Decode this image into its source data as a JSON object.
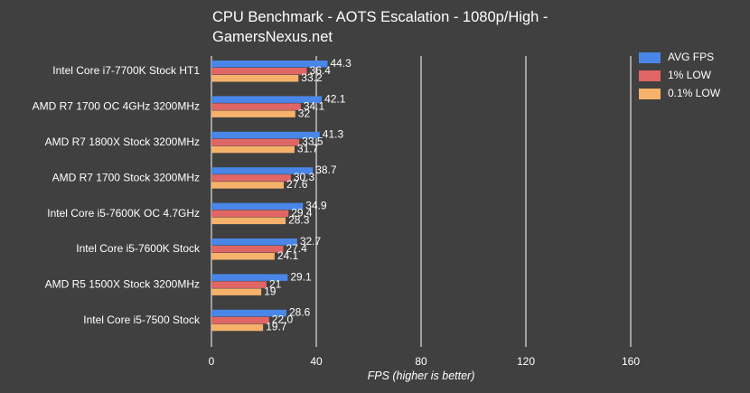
{
  "chart_data": {
    "type": "bar",
    "orientation": "horizontal",
    "title_line1": "CPU Benchmark - AOTS Escalation - 1080p/High -",
    "title_line2": "GamersNexus.net",
    "xlabel": "FPS (higher is better)",
    "xlim": [
      0,
      180
    ],
    "xticks": [
      0,
      40,
      80,
      120,
      160
    ],
    "grid": true,
    "legend_position": "top-right",
    "categories": [
      "Intel Core i7-7700K Stock HT1",
      "AMD R7 1700 OC 4GHz 3200MHz",
      "AMD R7 1800X Stock 3200MHz",
      "AMD R7 1700 Stock 3200MHz",
      "Intel Core i5-7600K OC 4.7GHz",
      "Intel Core i5-7600K Stock",
      "AMD R5 1500X Stock 3200MHz",
      "Intel Core i5-7500 Stock"
    ],
    "series": [
      {
        "name": "AVG FPS",
        "color": "#4a86e8",
        "values": [
          44.3,
          42.1,
          41.3,
          38.7,
          34.9,
          32.7,
          29.1,
          28.6
        ]
      },
      {
        "name": "1% LOW",
        "color": "#e06666",
        "values": [
          36.4,
          34.1,
          33.5,
          30.3,
          29.4,
          27.4,
          21,
          22.0
        ]
      },
      {
        "name": "0.1% LOW",
        "color": "#f6b26b",
        "values": [
          33.2,
          32,
          31.7,
          27.6,
          28.3,
          24.1,
          19,
          19.7
        ]
      }
    ],
    "value_labels": [
      [
        "44.3",
        "36.4",
        "33.2"
      ],
      [
        "42.1",
        "34.1",
        "32"
      ],
      [
        "41.3",
        "33.5",
        "31.7"
      ],
      [
        "38.7",
        "30.3",
        "27.6"
      ],
      [
        "34.9",
        "29.4",
        "28.3"
      ],
      [
        "32.7",
        "27.4",
        "24.1"
      ],
      [
        "29.1",
        "21",
        "19"
      ],
      [
        "28.6",
        "22.0",
        "19.7"
      ]
    ]
  }
}
